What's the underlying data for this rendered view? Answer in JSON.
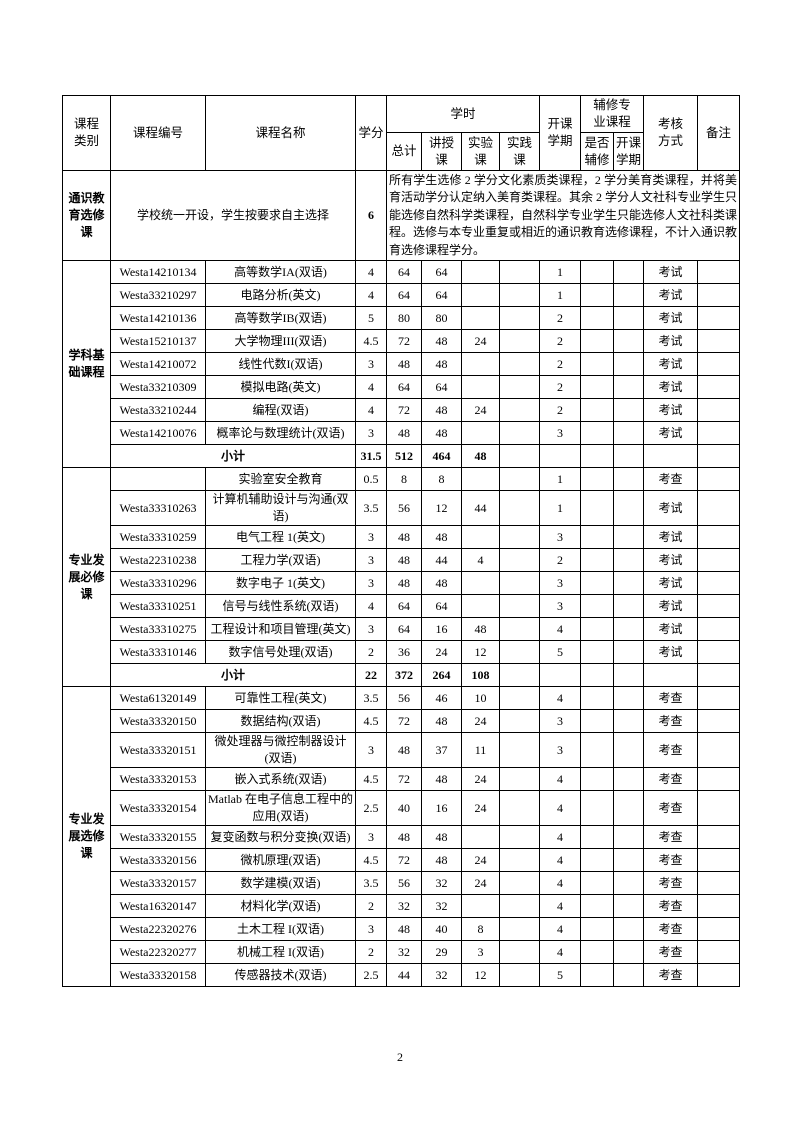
{
  "header": {
    "category": "课程类别",
    "code": "课程编号",
    "name": "课程名称",
    "credits": "学分",
    "hours": "学时",
    "total": "总计",
    "lecture": "讲授课",
    "lab": "实验课",
    "practice": "实践课",
    "term": "开课学期",
    "minor_group": "辅修专业课程",
    "minor": "是否辅修",
    "minor_term": "开课学期",
    "exam": "考核方式",
    "remark": "备注"
  },
  "general": {
    "category": "通识教育选修课",
    "name": "学校统一开设，学生按要求自主选择",
    "credits": 6,
    "note": "所有学生选修 2 学分文化素质类课程，2 学分美育类课程，并将美育活动学分认定纳入美育类课程。其余 2 学分人文社科专业学生只能选修自然科学类课程，自然科学专业学生只能选修人文社科类课程。选修与本专业重复或相近的通识教育选修课程，不计入通识教育选修课程学分。"
  },
  "groups": [
    {
      "category": "学科基础课程",
      "rows": [
        {
          "code": "Westa14210134",
          "name": "高等数学IA(双语)",
          "credits": 4,
          "total": 64,
          "lecture": 64,
          "term": 1,
          "exam": "考试"
        },
        {
          "code": "Westa33210297",
          "name": "电路分析(英文)",
          "credits": 4,
          "total": 64,
          "lecture": 64,
          "term": 1,
          "exam": "考试"
        },
        {
          "code": "Westa14210136",
          "name": "高等数学IB(双语)",
          "credits": 5,
          "total": 80,
          "lecture": 80,
          "term": 2,
          "exam": "考试"
        },
        {
          "code": "Westa15210137",
          "name": "大学物理III(双语)",
          "credits": 4.5,
          "total": 72,
          "lecture": 48,
          "lab": 24,
          "term": 2,
          "exam": "考试"
        },
        {
          "code": "Westa14210072",
          "name": "线性代数I(双语)",
          "credits": 3,
          "total": 48,
          "lecture": 48,
          "term": 2,
          "exam": "考试"
        },
        {
          "code": "Westa33210309",
          "name": "模拟电路(英文)",
          "credits": 4,
          "total": 64,
          "lecture": 64,
          "term": 2,
          "exam": "考试"
        },
        {
          "code": "Westa33210244",
          "name": "编程(双语)",
          "credits": 4,
          "total": 72,
          "lecture": 48,
          "lab": 24,
          "term": 2,
          "exam": "考试"
        },
        {
          "code": "Westa14210076",
          "name": "概率论与数理统计(双语)",
          "credits": 3,
          "total": 48,
          "lecture": 48,
          "term": 3,
          "exam": "考试"
        }
      ],
      "subtotal": {
        "label": "小计",
        "credits": 31.5,
        "total": 512,
        "lecture": 464,
        "lab": 48
      }
    },
    {
      "category": "专业发展必修课",
      "rows": [
        {
          "name": "实验室安全教育",
          "credits": 0.5,
          "total": 8,
          "lecture": 8,
          "term": 1,
          "exam": "考查"
        },
        {
          "code": "Westa33310263",
          "name": "计算机辅助设计与沟通(双语)",
          "credits": 3.5,
          "total": 56,
          "lecture": 12,
          "lab": 44,
          "term": 1,
          "exam": "考试"
        },
        {
          "code": "Westa33310259",
          "name": "电气工程 1(英文)",
          "credits": 3,
          "total": 48,
          "lecture": 48,
          "term": 3,
          "exam": "考试"
        },
        {
          "code": "Westa22310238",
          "name": "工程力学(双语)",
          "credits": 3,
          "total": 48,
          "lecture": 44,
          "lab": 4,
          "term": 2,
          "exam": "考试"
        },
        {
          "code": "Westa33310296",
          "name": "数字电子 1(英文)",
          "credits": 3,
          "total": 48,
          "lecture": 48,
          "term": 3,
          "exam": "考试"
        },
        {
          "code": "Westa33310251",
          "name": "信号与线性系统(双语)",
          "credits": 4,
          "total": 64,
          "lecture": 64,
          "term": 3,
          "exam": "考试"
        },
        {
          "code": "Westa33310275",
          "name": "工程设计和项目管理(英文)",
          "credits": 3,
          "total": 64,
          "lecture": 16,
          "lab": 48,
          "term": 4,
          "exam": "考试"
        },
        {
          "code": "Westa33310146",
          "name": "数字信号处理(双语)",
          "credits": 2,
          "total": 36,
          "lecture": 24,
          "lab": 12,
          "term": 5,
          "exam": "考试"
        }
      ],
      "subtotal": {
        "label": "小计",
        "credits": 22,
        "total": 372,
        "lecture": 264,
        "lab": 108
      }
    },
    {
      "category": "专业发展选修课",
      "rows": [
        {
          "code": "Westa61320149",
          "name": "可靠性工程(英文)",
          "credits": 3.5,
          "total": 56,
          "lecture": 46,
          "lab": 10,
          "term": 4,
          "exam": "考查"
        },
        {
          "code": "Westa33320150",
          "name": "数据结构(双语)",
          "credits": 4.5,
          "total": 72,
          "lecture": 48,
          "lab": 24,
          "term": 3,
          "exam": "考查"
        },
        {
          "code": "Westa33320151",
          "name": "微处理器与微控制器设计(双语)",
          "credits": 3,
          "total": 48,
          "lecture": 37,
          "lab": 11,
          "term": 3,
          "exam": "考查"
        },
        {
          "code": "Westa33320153",
          "name": "嵌入式系统(双语)",
          "credits": 4.5,
          "total": 72,
          "lecture": 48,
          "lab": 24,
          "term": 4,
          "exam": "考查"
        },
        {
          "code": "Westa33320154",
          "name": "Matlab 在电子信息工程中的应用(双语)",
          "credits": 2.5,
          "total": 40,
          "lecture": 16,
          "lab": 24,
          "term": 4,
          "exam": "考查"
        },
        {
          "code": "Westa33320155",
          "name": "复变函数与积分变换(双语)",
          "credits": 3,
          "total": 48,
          "lecture": 48,
          "term": 4,
          "exam": "考查"
        },
        {
          "code": "Westa33320156",
          "name": "微机原理(双语)",
          "credits": 4.5,
          "total": 72,
          "lecture": 48,
          "lab": 24,
          "term": 4,
          "exam": "考查"
        },
        {
          "code": "Westa33320157",
          "name": "数学建模(双语)",
          "credits": 3.5,
          "total": 56,
          "lecture": 32,
          "lab": 24,
          "term": 4,
          "exam": "考查"
        },
        {
          "code": "Westa16320147",
          "name": "材料化学(双语)",
          "credits": 2,
          "total": 32,
          "lecture": 32,
          "term": 4,
          "exam": "考查"
        },
        {
          "code": "Westa22320276",
          "name": "土木工程 I(双语)",
          "credits": 3,
          "total": 48,
          "lecture": 40,
          "lab": 8,
          "term": 4,
          "exam": "考查"
        },
        {
          "code": "Westa22320277",
          "name": "机械工程 I(双语)",
          "credits": 2,
          "total": 32,
          "lecture": 29,
          "lab": 3,
          "term": 4,
          "exam": "考查"
        },
        {
          "code": "Westa33320158",
          "name": "传感器技术(双语)",
          "credits": 2.5,
          "total": 44,
          "lecture": 32,
          "lab": 12,
          "term": 5,
          "exam": "考查"
        }
      ]
    }
  ],
  "page_number": "2"
}
